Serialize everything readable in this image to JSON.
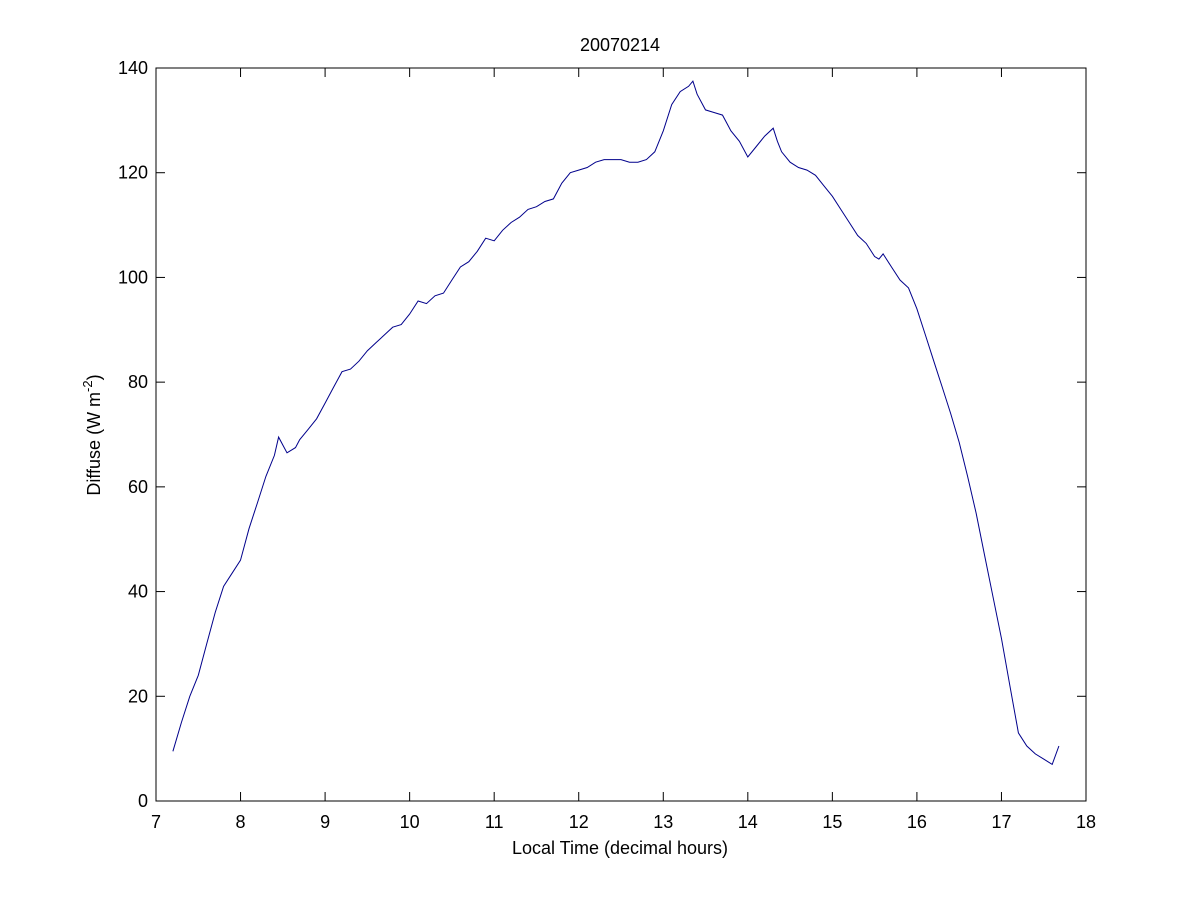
{
  "chart_data": {
    "type": "line",
    "title": "20070214",
    "xlabel": "Local Time (decimal hours)",
    "ylabel_main": "Diffuse (W m",
    "ylabel_sup": "-2",
    "ylabel_close": ")",
    "xlim": [
      7,
      18
    ],
    "ylim": [
      0,
      140
    ],
    "xticks": [
      7,
      8,
      9,
      10,
      11,
      12,
      13,
      14,
      15,
      16,
      17,
      18
    ],
    "yticks": [
      0,
      20,
      40,
      60,
      80,
      100,
      120,
      140
    ],
    "grid": false,
    "line_color": "#00008b",
    "series": [
      {
        "x": [
          7.2,
          7.3,
          7.4,
          7.5,
          7.6,
          7.7,
          7.8,
          7.9,
          8.0,
          8.1,
          8.2,
          8.3,
          8.4,
          8.45,
          8.5,
          8.55,
          8.6,
          8.65,
          8.7,
          8.8,
          8.9,
          9.0,
          9.1,
          9.2,
          9.3,
          9.4,
          9.5,
          9.6,
          9.7,
          9.8,
          9.9,
          10.0,
          10.1,
          10.2,
          10.3,
          10.4,
          10.5,
          10.6,
          10.7,
          10.8,
          10.9,
          11.0,
          11.1,
          11.2,
          11.3,
          11.4,
          11.5,
          11.6,
          11.7,
          11.8,
          11.9,
          12.0,
          12.1,
          12.2,
          12.3,
          12.4,
          12.5,
          12.6,
          12.7,
          12.8,
          12.9,
          13.0,
          13.1,
          13.2,
          13.3,
          13.35,
          13.4,
          13.5,
          13.6,
          13.7,
          13.8,
          13.9,
          14.0,
          14.1,
          14.2,
          14.3,
          14.35,
          14.4,
          14.5,
          14.6,
          14.7,
          14.8,
          14.9,
          15.0,
          15.1,
          15.2,
          15.3,
          15.4,
          15.5,
          15.55,
          15.6,
          15.7,
          15.8,
          15.9,
          16.0,
          16.1,
          16.2,
          16.3,
          16.4,
          16.5,
          16.6,
          16.7,
          16.8,
          16.9,
          17.0,
          17.1,
          17.2,
          17.3,
          17.4,
          17.5,
          17.6,
          17.68
        ],
        "y": [
          9.5,
          15,
          20,
          24,
          30,
          36,
          41,
          43.5,
          46,
          52,
          57,
          62,
          66,
          69.5,
          68,
          66.5,
          67,
          67.5,
          69,
          71,
          73,
          76,
          79,
          82,
          82.5,
          84,
          86,
          87.5,
          89,
          90.5,
          91,
          93,
          95.5,
          95,
          96.5,
          97,
          99.5,
          102,
          103,
          105,
          107.5,
          107,
          109,
          110.5,
          111.5,
          113,
          113.5,
          114.5,
          115,
          118,
          120,
          120.5,
          121,
          122,
          122.5,
          122.5,
          122.5,
          122,
          122,
          122.5,
          124,
          128,
          133,
          135.5,
          136.5,
          137.5,
          135,
          132,
          131.5,
          131,
          128,
          126,
          123,
          125,
          127,
          128.5,
          126,
          124,
          122,
          121,
          120.5,
          119.5,
          117.5,
          115.5,
          113,
          110.5,
          108,
          106.5,
          104,
          103.5,
          104.5,
          102,
          99.5,
          98,
          94,
          89,
          84,
          79,
          74,
          68.5,
          62,
          55,
          47,
          39,
          31,
          22,
          13,
          10.5,
          9,
          8,
          7,
          10.5
        ]
      }
    ]
  }
}
